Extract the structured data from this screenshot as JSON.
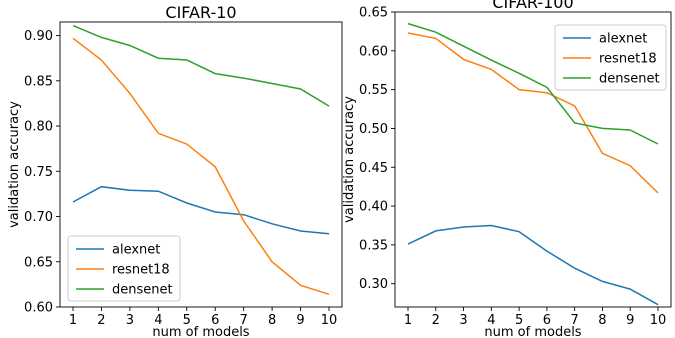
{
  "chart_data": [
    {
      "type": "line",
      "title": "CIFAR-10",
      "xlabel": "num of models",
      "ylabel": "validation accuracy",
      "x": [
        1,
        2,
        3,
        4,
        5,
        6,
        7,
        8,
        9,
        10
      ],
      "xticks": [
        "1",
        "2",
        "3",
        "4",
        "5",
        "6",
        "7",
        "8",
        "9",
        "10"
      ],
      "ylim": [
        0.6,
        0.915
      ],
      "yticks": [
        0.6,
        0.65,
        0.7,
        0.75,
        0.8,
        0.85,
        0.9
      ],
      "ytick_labels": [
        "0.60",
        "0.65",
        "0.70",
        "0.75",
        "0.80",
        "0.85",
        "0.90"
      ],
      "legend_position": "lower-left",
      "grid": false,
      "series": [
        {
          "name": "alexnet",
          "color": "#1f77b4",
          "values": [
            0.716,
            0.733,
            0.729,
            0.728,
            0.715,
            0.705,
            0.702,
            0.692,
            0.684,
            0.681
          ]
        },
        {
          "name": "resnet18",
          "color": "#ff7f0e",
          "values": [
            0.897,
            0.873,
            0.836,
            0.792,
            0.78,
            0.755,
            0.695,
            0.65,
            0.624,
            0.614
          ]
        },
        {
          "name": "densenet",
          "color": "#2ca02c",
          "values": [
            0.911,
            0.898,
            0.889,
            0.875,
            0.873,
            0.858,
            0.853,
            0.847,
            0.841,
            0.822
          ]
        }
      ]
    },
    {
      "type": "line",
      "title": "CIFAR-100",
      "xlabel": "num of models",
      "ylabel": "validation accuracy",
      "x": [
        1,
        2,
        3,
        4,
        5,
        6,
        7,
        8,
        9,
        10
      ],
      "xticks": [
        "1",
        "2",
        "3",
        "4",
        "5",
        "6",
        "7",
        "8",
        "9",
        "10"
      ],
      "ylim": [
        0.27,
        0.65
      ],
      "yticks": [
        0.3,
        0.35,
        0.4,
        0.45,
        0.5,
        0.55,
        0.6,
        0.65
      ],
      "ytick_labels": [
        "0.30",
        "0.35",
        "0.40",
        "0.45",
        "0.50",
        "0.55",
        "0.60",
        "0.65"
      ],
      "legend_position": "upper-right",
      "grid": false,
      "series": [
        {
          "name": "alexnet",
          "color": "#1f77b4",
          "values": [
            0.351,
            0.368,
            0.373,
            0.375,
            0.367,
            0.342,
            0.32,
            0.303,
            0.293,
            0.273
          ]
        },
        {
          "name": "resnet18",
          "color": "#ff7f0e",
          "values": [
            0.623,
            0.616,
            0.589,
            0.576,
            0.55,
            0.546,
            0.529,
            0.468,
            0.452,
            0.417
          ]
        },
        {
          "name": "densenet",
          "color": "#2ca02c",
          "values": [
            0.635,
            0.624,
            0.606,
            0.588,
            0.571,
            0.553,
            0.507,
            0.5,
            0.498,
            0.48
          ]
        }
      ]
    }
  ]
}
